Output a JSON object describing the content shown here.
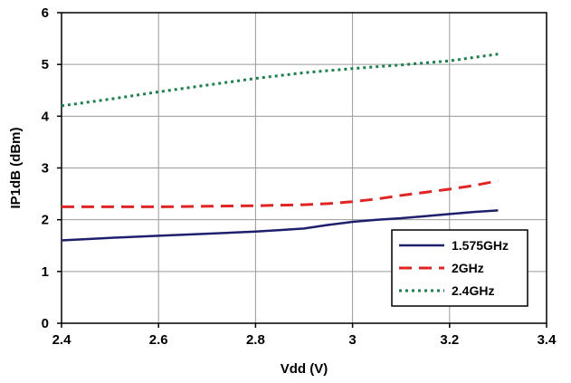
{
  "chart_data": {
    "type": "line",
    "title": "",
    "xlabel": "Vdd (V)",
    "ylabel": "IP1dB (dBm)",
    "xlim": [
      2.4,
      3.4
    ],
    "ylim": [
      0,
      6
    ],
    "xticks": [
      "2.4",
      "2.6",
      "2.8",
      "3",
      "3.2",
      "3.4"
    ],
    "yticks": [
      "0",
      "1",
      "2",
      "3",
      "4",
      "5",
      "6"
    ],
    "grid": true,
    "legend_position": "bottom-right",
    "series": [
      {
        "name": "1.575GHz",
        "color": "#1f1f6e",
        "style": "solid",
        "x": [
          2.4,
          2.5,
          2.6,
          2.7,
          2.8,
          2.85,
          2.9,
          2.95,
          3.0,
          3.05,
          3.1,
          3.15,
          3.2,
          3.25,
          3.3
        ],
        "y": [
          1.6,
          1.65,
          1.69,
          1.73,
          1.77,
          1.8,
          1.83,
          1.9,
          1.96,
          2.0,
          2.03,
          2.07,
          2.11,
          2.15,
          2.18
        ]
      },
      {
        "name": "2GHz",
        "color": "#e02424",
        "style": "dash",
        "x": [
          2.4,
          2.5,
          2.6,
          2.7,
          2.8,
          2.9,
          2.95,
          3.0,
          3.05,
          3.1,
          3.15,
          3.2,
          3.25,
          3.3
        ],
        "y": [
          2.25,
          2.25,
          2.25,
          2.26,
          2.27,
          2.29,
          2.31,
          2.35,
          2.4,
          2.47,
          2.53,
          2.59,
          2.66,
          2.75
        ]
      },
      {
        "name": "2.4GHz",
        "color": "#1e7f4e",
        "style": "dot",
        "x": [
          2.4,
          2.5,
          2.6,
          2.7,
          2.8,
          2.9,
          3.0,
          3.1,
          3.2,
          3.3
        ],
        "y": [
          4.2,
          4.33,
          4.47,
          4.6,
          4.73,
          4.84,
          4.92,
          4.99,
          5.07,
          5.2
        ]
      }
    ]
  },
  "colors": {
    "grid": "#9a9a9a",
    "axis": "#000000"
  }
}
